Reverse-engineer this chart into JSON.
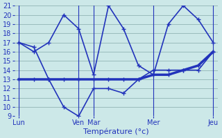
{
  "bg_color": "#cce8e8",
  "grid_color": "#99bbbb",
  "line_color": "#2233bb",
  "xlabel": "Température (°c)",
  "xlabel_fontsize": 8,
  "tick_fontsize": 7,
  "ylim": [
    9,
    21
  ],
  "yticks": [
    9,
    10,
    11,
    12,
    13,
    14,
    15,
    16,
    17,
    18,
    19,
    20,
    21
  ],
  "day_labels": [
    "Lun",
    "Ven",
    "Mar",
    "Mer",
    "Jeu"
  ],
  "day_x": [
    0,
    4,
    5,
    9,
    13
  ],
  "vline_x": [
    0,
    4,
    5,
    9,
    13
  ],
  "xlim": [
    -0.3,
    13.3
  ],
  "series": [
    {
      "x": [
        0,
        1,
        2,
        3,
        4,
        5,
        6,
        7,
        8,
        9,
        10,
        11,
        12,
        13
      ],
      "y": [
        17,
        16.5,
        13,
        10,
        9,
        12,
        12,
        11.5,
        13,
        14,
        14,
        14,
        14,
        16
      ],
      "lw": 1.2
    },
    {
      "x": [
        0,
        1,
        2,
        3,
        4,
        5,
        6,
        7,
        8,
        9,
        10,
        11,
        12,
        13
      ],
      "y": [
        17,
        16,
        17,
        20,
        18.5,
        13.5,
        21,
        18.5,
        14.5,
        13.5,
        19,
        21,
        19.5,
        17
      ],
      "lw": 1.2
    },
    {
      "x": [
        0,
        1,
        2,
        3,
        4,
        5,
        6,
        7,
        8,
        9,
        10,
        11,
        12,
        13
      ],
      "y": [
        13,
        13,
        13,
        13,
        13,
        13,
        13,
        13,
        13,
        13.5,
        13.5,
        14,
        14.5,
        16
      ],
      "lw": 2.5
    }
  ]
}
